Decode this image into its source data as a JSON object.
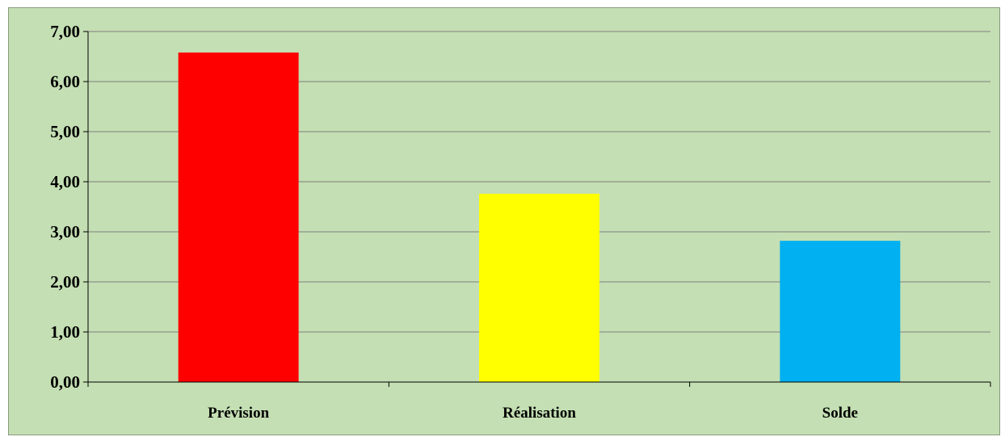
{
  "chart_data": {
    "type": "bar",
    "categories": [
      "Prévision",
      "Réalisation",
      "Solde"
    ],
    "values": [
      6.58,
      3.76,
      2.82
    ],
    "bar_colors": [
      "#ff0000",
      "#ffff00",
      "#00b0f0"
    ],
    "ylim": [
      0,
      7
    ],
    "y_ticks": [
      "0,00",
      "1,00",
      "2,00",
      "3,00",
      "4,00",
      "5,00",
      "6,00",
      "7,00"
    ],
    "y_tick_values": [
      0,
      1,
      2,
      3,
      4,
      5,
      6,
      7
    ],
    "grid": true,
    "background_color": "#c4dfb3",
    "gridline_color": "#7f7f7f",
    "title": "",
    "xlabel": "",
    "ylabel": ""
  }
}
